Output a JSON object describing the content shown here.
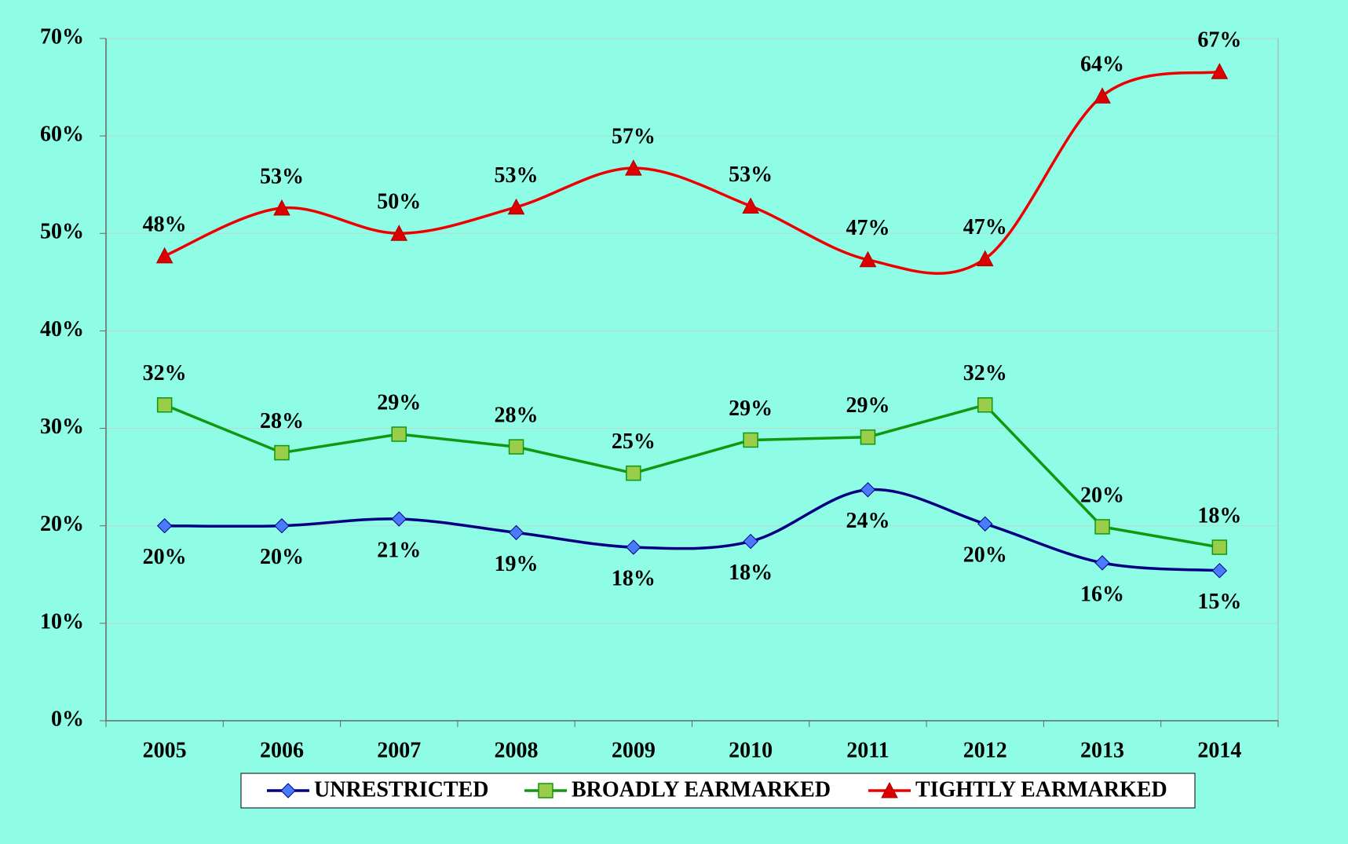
{
  "chart_data": {
    "type": "line",
    "categories": [
      "2005",
      "2006",
      "2007",
      "2008",
      "2009",
      "2010",
      "2011",
      "2012",
      "2013",
      "2014"
    ],
    "series": [
      {
        "name": "UNRESTRICTED",
        "color": "#000080",
        "marker": "diamond",
        "marker_color": "#4a7bff",
        "smooth": true,
        "label_position": "below",
        "values": [
          20.0,
          20.0,
          20.7,
          19.3,
          17.8,
          18.4,
          23.7,
          20.2,
          16.2,
          15.4
        ],
        "value_labels": [
          "20%",
          "20%",
          "21%",
          "19%",
          "18%",
          "18%",
          "24%",
          "20%",
          "16%",
          "15%"
        ]
      },
      {
        "name": "BROADLY EARMARKED",
        "color": "#109810",
        "marker": "square",
        "marker_color": "#9acd4a",
        "smooth": false,
        "label_position": "above",
        "values": [
          32.4,
          27.5,
          29.4,
          28.1,
          25.4,
          28.8,
          29.1,
          32.4,
          19.9,
          17.8
        ],
        "value_labels": [
          "32%",
          "28%",
          "29%",
          "28%",
          "25%",
          "29%",
          "29%",
          "32%",
          "20%",
          "18%"
        ]
      },
      {
        "name": "TIGHTLY EARMARKED",
        "color": "#ee0000",
        "marker": "triangle",
        "marker_color": "#dd0000",
        "smooth": true,
        "label_position": "above",
        "values": [
          47.7,
          52.6,
          50.0,
          52.7,
          56.7,
          52.8,
          47.3,
          47.4,
          64.1,
          66.6
        ],
        "value_labels": [
          "48%",
          "53%",
          "50%",
          "53%",
          "57%",
          "53%",
          "47%",
          "47%",
          "64%",
          "67%"
        ]
      }
    ],
    "ylim": [
      0,
      70
    ],
    "yticks": [
      {
        "value": 0,
        "label": "0%"
      },
      {
        "value": 10,
        "label": "10%"
      },
      {
        "value": 20,
        "label": "20%"
      },
      {
        "value": 30,
        "label": "30%"
      },
      {
        "value": 40,
        "label": "40%"
      },
      {
        "value": 50,
        "label": "50%"
      },
      {
        "value": 60,
        "label": "60%"
      },
      {
        "value": 70,
        "label": "70%"
      }
    ],
    "grid": true,
    "legend": "bottom"
  }
}
